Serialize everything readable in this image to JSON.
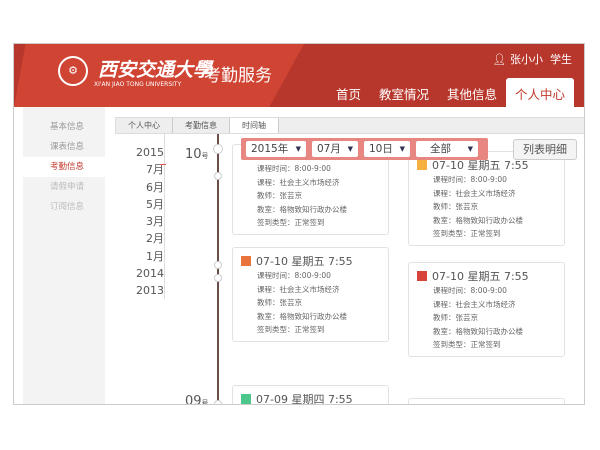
{
  "header": {
    "logo_text": "西安交通大學",
    "logo_en": "XI'AN JIAO TONG UNIVERSITY",
    "service": "考勤服务",
    "user_name": "张小小",
    "user_role": "学生",
    "nav": [
      {
        "label": "首页"
      },
      {
        "label": "教室情况"
      },
      {
        "label": "其他信息"
      },
      {
        "label": "个人中心",
        "active": true
      }
    ]
  },
  "sidebar": {
    "items": [
      {
        "label": "基本信息"
      },
      {
        "label": "课表信息"
      },
      {
        "label": "考勤信息",
        "active": true
      },
      {
        "label": "请假申请"
      },
      {
        "label": "订阅信息"
      }
    ]
  },
  "breadcrumb": [
    "个人中心",
    "考勤信息",
    "时间轴"
  ],
  "years": [
    "2015",
    "7月",
    "6月",
    "5月",
    "3月",
    "2月",
    "1月",
    "2014",
    "2013"
  ],
  "days": [
    {
      "num": "10",
      "unit": "号"
    },
    {
      "num": "09",
      "unit": "号"
    }
  ],
  "filter": {
    "year": "2015年",
    "month": "07月",
    "day": "10日",
    "type": "全部"
  },
  "list_button": "列表明细",
  "colors": {
    "brand": "#b8372c",
    "accent": "#c0392b",
    "filter": "#e88682",
    "axis": "#6b4d47"
  },
  "cards": [
    {
      "title": "",
      "icon_color": "#e8743b",
      "lines": [
        "课程时间：8:00-9:00",
        "课程：社会主义市场经济",
        "教师：张芸京",
        "教室：格物致知行政办公楼",
        "签到类型：正常签到"
      ]
    },
    {
      "title": "07-10 星期五 7:55",
      "icon_color": "#f5b040",
      "lines": [
        "课程时间：8:00-9:00",
        "课程：社会主义市场经济",
        "教师：张芸京",
        "教室：格物致知行政办公楼",
        "签到类型：正常签到"
      ]
    },
    {
      "title": "07-10 星期五 7:55",
      "icon_color": "#e8743b",
      "lines": [
        "课程时间：8:00-9:00",
        "课程：社会主义市场经济",
        "教师：张芸京",
        "教室：格物致知行政办公楼",
        "签到类型：正常签到"
      ]
    },
    {
      "title": "07-10 星期五 7:55",
      "icon_color": "#d9443a",
      "lines": [
        "课程时间：8:00-9:00",
        "课程：社会主义市场经济",
        "教师：张芸京",
        "教室：格物致知行政办公楼",
        "签到类型：正常签到"
      ]
    },
    {
      "title": "07-09 星期四 7:55",
      "icon_color": "#4cc68a",
      "lines": []
    }
  ]
}
